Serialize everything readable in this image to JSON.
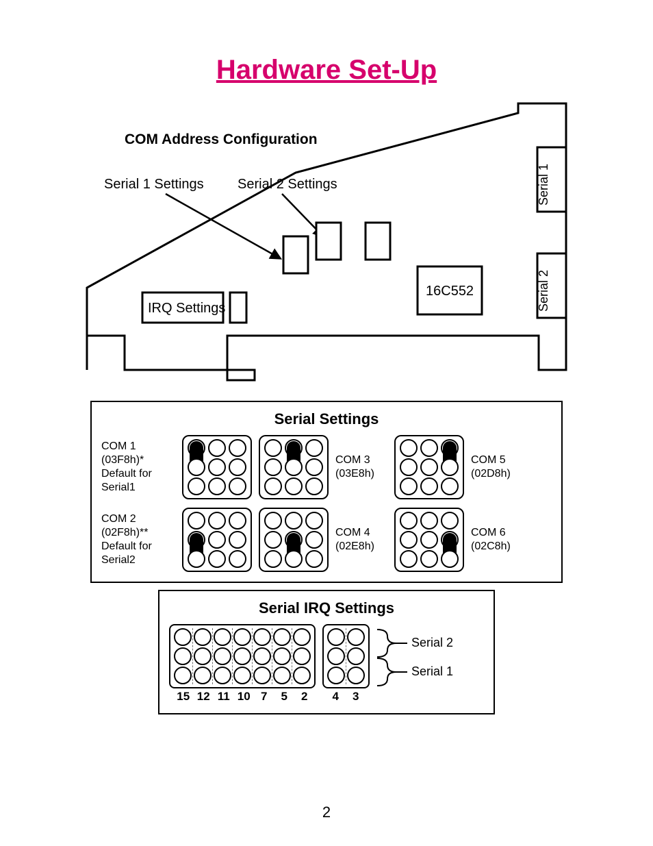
{
  "colors": {
    "title": "#d6006c",
    "stroke": "#000000",
    "background": "#ffffff",
    "dashed": "#777777"
  },
  "title": "Hardware Set-Up",
  "page_number": "2",
  "card": {
    "heading": "COM Address Configuration",
    "labels": {
      "serial1_settings": "Serial 1 Settings",
      "serial2_settings": "Serial 2 Settings",
      "irq_settings": "IRQ Settings",
      "chip": "16C552",
      "port1": "Serial 1",
      "port2": "Serial 2"
    }
  },
  "serial_panel": {
    "title": "Serial Settings",
    "rows": [
      [
        {
          "name": "COM 1",
          "addr": "(03F8h)*",
          "note1": "Default for",
          "note2": "Serial1",
          "jumper_col": 0,
          "jumper_rows": [
            0,
            1
          ]
        },
        {
          "name": "COM 3",
          "addr": "(03E8h)",
          "jumper_col": 1,
          "jumper_rows": [
            0,
            1
          ]
        },
        {
          "name": "COM 5",
          "addr": "(02D8h)",
          "jumper_col": 2,
          "jumper_rows": [
            0,
            1
          ]
        }
      ],
      [
        {
          "name": "COM 2",
          "addr": "(02F8h)**",
          "note1": "Default for",
          "note2": "Serial2",
          "jumper_col": 0,
          "jumper_rows": [
            1,
            2
          ]
        },
        {
          "name": "COM 4",
          "addr": "(02E8h)",
          "jumper_col": 1,
          "jumper_rows": [
            1,
            2
          ]
        },
        {
          "name": "COM 6",
          "addr": "(02C8h)",
          "jumper_col": 2,
          "jumper_rows": [
            1,
            2
          ]
        }
      ]
    ]
  },
  "irq_panel": {
    "title": "Serial IRQ Settings",
    "block1": [
      "15",
      "12",
      "11",
      "10",
      "7",
      "5",
      "2"
    ],
    "block2": [
      "4",
      "3"
    ],
    "side_top": "Serial 2",
    "side_bottom": "Serial 1"
  }
}
